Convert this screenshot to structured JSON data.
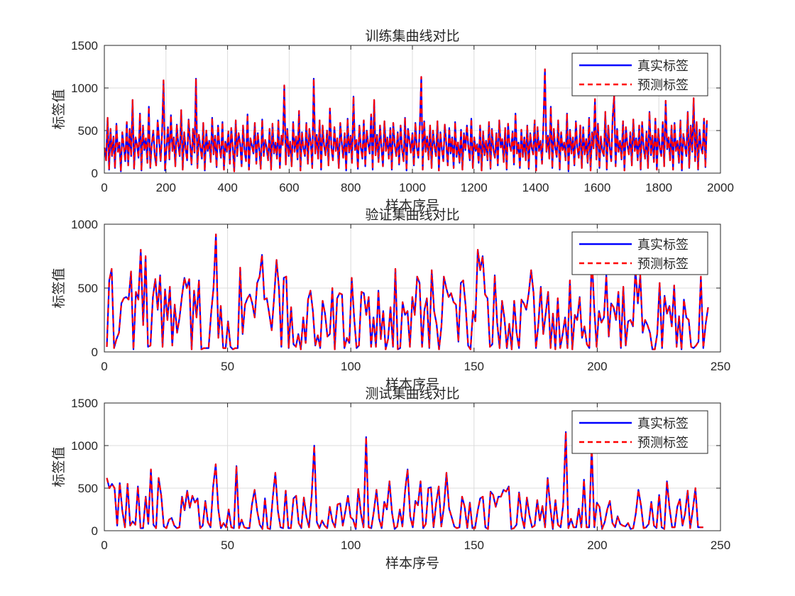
{
  "colors": {
    "true_line": "#0000ff",
    "pred_line": "#ff0000",
    "axis": "#262626",
    "grid": "#dcdcdc"
  },
  "chart_data": [
    {
      "type": "line",
      "title": "训练集曲线对比",
      "xlabel": "样本序号",
      "ylabel": "标签值",
      "xlim": [
        0,
        2000
      ],
      "ylim": [
        0,
        1500
      ],
      "xticks": [
        "0",
        "200",
        "400",
        "600",
        "800",
        "1000",
        "1200",
        "1400",
        "1600",
        "1800",
        "2000"
      ],
      "yticks": [
        "0",
        "500",
        "1000",
        "1500"
      ],
      "legend_location": "top-right",
      "series": [
        {
          "name": "真实标签",
          "style": "solid"
        },
        {
          "name": "预测标签",
          "style": "dashed"
        }
      ],
      "y": [
        300,
        150,
        650,
        40,
        520,
        200,
        430,
        60,
        580,
        250,
        360,
        20,
        480,
        310,
        140,
        600,
        90,
        520,
        200,
        860,
        50,
        420,
        330,
        180,
        700,
        30,
        560,
        270,
        410,
        120,
        780,
        60,
        340,
        500,
        210,
        90,
        620,
        380,
        140,
        470,
        1090,
        30,
        300,
        540,
        160,
        680,
        260,
        420,
        80,
        570,
        330,
        200,
        740,
        40,
        480,
        290,
        150,
        630,
        360,
        100,
        520,
        240,
        1110,
        60,
        450,
        310,
        170,
        590,
        30,
        500,
        260,
        380,
        130,
        650,
        220,
        440,
        70,
        560,
        310,
        180,
        600,
        40,
        370,
        250,
        490,
        110,
        530,
        300,
        20,
        620,
        200,
        470,
        350,
        80,
        560,
        270,
        140,
        690,
        40,
        410,
        320,
        230,
        590,
        110,
        470,
        280,
        50,
        630,
        200,
        390,
        300,
        150,
        520,
        40,
        580,
        230,
        360,
        170,
        620,
        60,
        440,
        330,
        1030,
        100,
        520,
        200,
        370,
        80,
        600,
        250,
        430,
        160,
        730,
        30,
        480,
        290,
        200,
        590,
        110,
        520,
        340,
        60,
        1110,
        230,
        450,
        170,
        620,
        40,
        560,
        330,
        210,
        500,
        90,
        760,
        300,
        150,
        540,
        260,
        410,
        60,
        590,
        360,
        180,
        470,
        30,
        640,
        240,
        440,
        120,
        900,
        270,
        390,
        50,
        560,
        300,
        170,
        620,
        80,
        500,
        340,
        230,
        690,
        40,
        860,
        210,
        450,
        130,
        560,
        300,
        80,
        610,
        260,
        420,
        170,
        530,
        40,
        590,
        330,
        200,
        480,
        100,
        560,
        270,
        140,
        650,
        30,
        520,
        380,
        240,
        470,
        90,
        590,
        300,
        180,
        540,
        1130,
        40,
        610,
        250,
        430,
        160,
        560,
        60,
        500,
        320,
        200,
        610,
        30,
        480,
        280,
        140,
        570,
        350,
        90,
        530,
        230,
        420,
        60,
        600,
        190,
        360,
        120,
        510,
        40,
        470,
        270,
        560,
        310,
        150,
        640,
        60,
        420,
        260,
        340,
        120,
        560,
        30,
        490,
        210,
        380,
        150,
        600,
        50,
        520,
        270,
        180,
        470,
        90,
        620,
        300,
        400,
        130,
        530,
        40,
        580,
        330,
        260,
        490,
        100,
        700,
        230,
        360,
        60,
        510,
        190,
        420,
        150,
        560,
        50,
        470,
        300,
        220,
        620,
        30,
        540,
        260,
        380,
        110,
        590,
        1220,
        250,
        440,
        170,
        780,
        60,
        520,
        300,
        190,
        620,
        40,
        480,
        270,
        360,
        150,
        700,
        20,
        510,
        230,
        420,
        90,
        610,
        300,
        180,
        560,
        60,
        540,
        220,
        400,
        120,
        650,
        30,
        480,
        290,
        870,
        160,
        580,
        60,
        430,
        260,
        200,
        720,
        40,
        560,
        300,
        140,
        650,
        910,
        80,
        520,
        250,
        380,
        160,
        610,
        30,
        540,
        330,
        220,
        480,
        90,
        630,
        260,
        410,
        150,
        560,
        40,
        600,
        300,
        170,
        490,
        60,
        720,
        210,
        440,
        130,
        640,
        40,
        520,
        300,
        200,
        600,
        80,
        850,
        280,
        420,
        150,
        560,
        40,
        590,
        260,
        380,
        120,
        620,
        30,
        460,
        320,
        200,
        720,
        60,
        560,
        250,
        880,
        140,
        600,
        40,
        510,
        300,
        230,
        640,
        70,
        620
      ]
    },
    {
      "type": "line",
      "title": "验证集曲线对比",
      "xlabel": "样本序号",
      "ylabel": "标签值",
      "xlim": [
        0,
        250
      ],
      "ylim": [
        0,
        1000
      ],
      "xticks": [
        "0",
        "50",
        "100",
        "150",
        "200",
        "250"
      ],
      "yticks": [
        "0",
        "500",
        "1000"
      ],
      "legend_location": "top-right",
      "series": [
        {
          "name": "真实标签",
          "style": "solid"
        },
        {
          "name": "预测标签",
          "style": "dashed"
        }
      ],
      "y": [
        40,
        560,
        650,
        30,
        100,
        150,
        380,
        420,
        430,
        410,
        630,
        20,
        470,
        410,
        800,
        210,
        750,
        40,
        50,
        430,
        570,
        330,
        600,
        40,
        490,
        250,
        510,
        50,
        370,
        150,
        270,
        440,
        580,
        500,
        570,
        20,
        480,
        270,
        560,
        20,
        30,
        30,
        30,
        300,
        500,
        920,
        110,
        360,
        30,
        30,
        240,
        40,
        20,
        30,
        30,
        660,
        140,
        370,
        420,
        450,
        380,
        270,
        540,
        590,
        760,
        410,
        420,
        300,
        170,
        430,
        720,
        500,
        40,
        580,
        590,
        30,
        350,
        60,
        40,
        140,
        20,
        270,
        70,
        410,
        480,
        320,
        50,
        130,
        30,
        400,
        300,
        120,
        140,
        500,
        20,
        420,
        460,
        450,
        30,
        110,
        70,
        580,
        270,
        30,
        50,
        470,
        460,
        290,
        430,
        40,
        270,
        40,
        480,
        100,
        320,
        20,
        100,
        350,
        40,
        650,
        20,
        30,
        390,
        290,
        320,
        40,
        430,
        290,
        590,
        540,
        40,
        330,
        420,
        30,
        640,
        320,
        220,
        20,
        200,
        590,
        500,
        430,
        460,
        390,
        370,
        80,
        540,
        560,
        360,
        50,
        20,
        320,
        240,
        800,
        640,
        750,
        450,
        420,
        40,
        60,
        600,
        230,
        30,
        400,
        260,
        30,
        220,
        20,
        400,
        150,
        30,
        410,
        380,
        330,
        460,
        640,
        460,
        30,
        220,
        510,
        140,
        300,
        470,
        30,
        300,
        20,
        420,
        30,
        140,
        270,
        30,
        560,
        20,
        290,
        250,
        430,
        110,
        200,
        60,
        30,
        760,
        350,
        40,
        320,
        230,
        270,
        600,
        120,
        380,
        350,
        250,
        470,
        30,
        510,
        50,
        240,
        250,
        200,
        650,
        380,
        600,
        150,
        250,
        210,
        150,
        20,
        20,
        140,
        540,
        30,
        440,
        300,
        360,
        200,
        520,
        40,
        280,
        20,
        410,
        270,
        250,
        40,
        30,
        50,
        80,
        590,
        30,
        220,
        350
      ]
    },
    {
      "type": "line",
      "title": "测试集曲线对比",
      "xlabel": "样本序号",
      "ylabel": "标签值",
      "xlim": [
        0,
        250
      ],
      "ylim": [
        0,
        1500
      ],
      "xticks": [
        "0",
        "50",
        "100",
        "150",
        "200",
        "250"
      ],
      "yticks": [
        "0",
        "500",
        "1000",
        "1500"
      ],
      "legend_location": "top-right",
      "series": [
        {
          "name": "真实标签",
          "style": "solid"
        },
        {
          "name": "预测标签",
          "style": "dashed"
        }
      ],
      "y": [
        620,
        500,
        550,
        500,
        60,
        560,
        230,
        40,
        550,
        60,
        110,
        70,
        520,
        30,
        30,
        400,
        80,
        720,
        70,
        30,
        620,
        410,
        50,
        30,
        130,
        150,
        60,
        30,
        40,
        400,
        240,
        470,
        270,
        410,
        330,
        380,
        30,
        60,
        350,
        100,
        40,
        520,
        780,
        250,
        30,
        90,
        40,
        250,
        40,
        30,
        760,
        30,
        130,
        40,
        30,
        30,
        310,
        480,
        230,
        70,
        20,
        380,
        30,
        20,
        390,
        680,
        230,
        40,
        30,
        470,
        30,
        30,
        380,
        410,
        90,
        30,
        390,
        160,
        40,
        410,
        1000,
        100,
        30,
        120,
        60,
        30,
        280,
        110,
        40,
        310,
        320,
        60,
        230,
        410,
        160,
        130,
        20,
        490,
        200,
        40,
        1100,
        40,
        30,
        230,
        480,
        140,
        30,
        340,
        250,
        580,
        210,
        20,
        50,
        250,
        50,
        460,
        720,
        170,
        40,
        350,
        300,
        580,
        30,
        80,
        500,
        510,
        40,
        320,
        520,
        50,
        280,
        680,
        260,
        160,
        50,
        30,
        40,
        400,
        280,
        30,
        330,
        30,
        30,
        230,
        380,
        400,
        40,
        20,
        460,
        420,
        280,
        400,
        400,
        480,
        460,
        520,
        20,
        30,
        70,
        450,
        170,
        30,
        390,
        180,
        40,
        60,
        360,
        120,
        290,
        40,
        620,
        280,
        20,
        360,
        70,
        40,
        300,
        1160,
        30,
        140,
        40,
        40,
        260,
        40,
        600,
        40,
        40,
        1000,
        40,
        330,
        280,
        20,
        100,
        250,
        350,
        90,
        40,
        170,
        80,
        60,
        50,
        90,
        20,
        30,
        200,
        480,
        300,
        30,
        40,
        80,
        340,
        60,
        30,
        420,
        40,
        20,
        580,
        270,
        40,
        40,
        280,
        370,
        60,
        200,
        470,
        30,
        250,
        500,
        40,
        40,
        40
      ]
    }
  ]
}
